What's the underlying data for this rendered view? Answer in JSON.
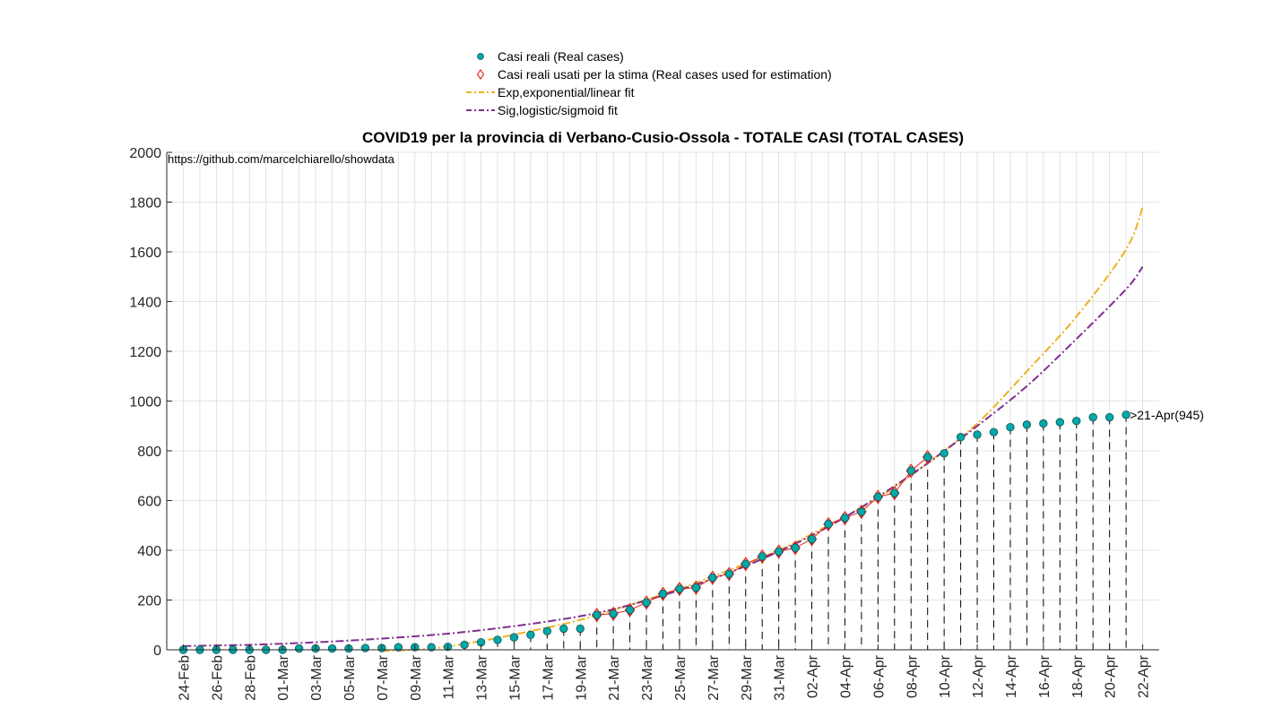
{
  "chart_data": {
    "type": "scatter",
    "title": "COVID19 per la provincia di Verbano-Cusio-Ossola - TOTALE CASI (TOTAL CASES)",
    "annotation": "https://github.com/marcelchiarello/showdata",
    "end_annotation": ">21-Apr(945)",
    "xlabel": "",
    "ylabel": "",
    "ylim": [
      0,
      2000
    ],
    "yticks": [
      0,
      200,
      400,
      600,
      800,
      1000,
      1200,
      1400,
      1600,
      1800,
      2000
    ],
    "x_start": "24-Feb",
    "x_end": "22-Apr",
    "xtick_labels": [
      "24-Feb",
      "26-Feb",
      "28-Feb",
      "01-Mar",
      "03-Mar",
      "05-Mar",
      "07-Mar",
      "09-Mar",
      "11-Mar",
      "13-Mar",
      "15-Mar",
      "17-Mar",
      "19-Mar",
      "21-Mar",
      "23-Mar",
      "25-Mar",
      "27-Mar",
      "29-Mar",
      "31-Mar",
      "02-Apr",
      "04-Apr",
      "06-Apr",
      "08-Apr",
      "10-Apr",
      "12-Apr",
      "14-Apr",
      "16-Apr",
      "18-Apr",
      "20-Apr",
      "22-Apr"
    ],
    "grid": true,
    "legend_position": "top-center",
    "legend": [
      {
        "label": "Casi reali (Real cases)",
        "marker": "circle"
      },
      {
        "label": "Casi reali usati per la stima (Real cases used for estimation)",
        "marker": "diamond"
      },
      {
        "label": "Exp,exponential/linear fit",
        "marker": "dashdot"
      },
      {
        "label": "Sig,logistic/sigmoid fit",
        "marker": "dashdot"
      }
    ],
    "colors": {
      "real": "#00a8a8",
      "estimation": "#e8241c",
      "exp": "#edb120",
      "sig": "#7e2f8e",
      "stem": "#000000"
    },
    "series": [
      {
        "name": "Casi reali (Real cases)",
        "dates": [
          "24-Feb",
          "25-Feb",
          "26-Feb",
          "27-Feb",
          "28-Feb",
          "29-Feb",
          "01-Mar",
          "02-Mar",
          "03-Mar",
          "04-Mar",
          "05-Mar",
          "06-Mar",
          "07-Mar",
          "08-Mar",
          "09-Mar",
          "10-Mar",
          "11-Mar",
          "12-Mar",
          "13-Mar",
          "14-Mar",
          "15-Mar",
          "16-Mar",
          "17-Mar",
          "18-Mar",
          "19-Mar",
          "20-Mar",
          "21-Mar",
          "22-Mar",
          "23-Mar",
          "24-Mar",
          "25-Mar",
          "26-Mar",
          "27-Mar",
          "28-Mar",
          "29-Mar",
          "30-Mar",
          "31-Mar",
          "01-Apr",
          "02-Apr",
          "03-Apr",
          "04-Apr",
          "05-Apr",
          "06-Apr",
          "07-Apr",
          "08-Apr",
          "09-Apr",
          "10-Apr",
          "11-Apr",
          "12-Apr",
          "13-Apr",
          "14-Apr",
          "15-Apr",
          "16-Apr",
          "17-Apr",
          "18-Apr",
          "19-Apr",
          "20-Apr",
          "21-Apr"
        ],
        "values": [
          0,
          0,
          0,
          0,
          0,
          0,
          0,
          5,
          5,
          5,
          5,
          7,
          7,
          10,
          10,
          10,
          12,
          20,
          30,
          40,
          50,
          60,
          75,
          85,
          85,
          140,
          145,
          160,
          190,
          225,
          245,
          250,
          290,
          305,
          345,
          375,
          395,
          410,
          445,
          505,
          530,
          555,
          615,
          630,
          720,
          775,
          790,
          855,
          865,
          875,
          895,
          905,
          910,
          915,
          920,
          935,
          935,
          945
        ]
      },
      {
        "name": "Casi reali usati per la stima (Real cases used for estimation)",
        "dates": [
          "20-Mar",
          "21-Mar",
          "22-Mar",
          "23-Mar",
          "24-Mar",
          "25-Mar",
          "26-Mar",
          "27-Mar",
          "28-Mar",
          "29-Mar",
          "30-Mar",
          "31-Mar",
          "01-Apr",
          "02-Apr",
          "03-Apr",
          "04-Apr",
          "05-Apr",
          "06-Apr",
          "07-Apr",
          "08-Apr",
          "09-Apr"
        ],
        "values": [
          140,
          145,
          160,
          190,
          225,
          245,
          250,
          290,
          305,
          345,
          375,
          395,
          410,
          445,
          505,
          530,
          555,
          615,
          630,
          720,
          775
        ]
      },
      {
        "name": "Exp,exponential/linear fit",
        "dates": [
          "07-Mar",
          "10-Mar",
          "13-Mar",
          "16-Mar",
          "19-Mar",
          "22-Mar",
          "25-Mar",
          "28-Mar",
          "31-Mar",
          "03-Apr",
          "06-Apr",
          "09-Apr",
          "12-Apr",
          "15-Apr",
          "18-Apr",
          "21-Apr",
          "22-Apr"
        ],
        "values": [
          -5,
          5,
          35,
          75,
          120,
          180,
          245,
          320,
          400,
          500,
          610,
          750,
          910,
          1120,
          1340,
          1610,
          1780
        ]
      },
      {
        "name": "Sig,logistic/sigmoid fit",
        "dates": [
          "24-Feb",
          "28-Feb",
          "03-Mar",
          "07-Mar",
          "11-Mar",
          "15-Mar",
          "19-Mar",
          "22-Mar",
          "25-Mar",
          "28-Mar",
          "31-Mar",
          "03-Apr",
          "06-Apr",
          "09-Apr",
          "12-Apr",
          "15-Apr",
          "18-Apr",
          "21-Apr",
          "22-Apr"
        ],
        "values": [
          15,
          20,
          30,
          45,
          65,
          95,
          135,
          180,
          240,
          310,
          395,
          495,
          615,
          750,
          900,
          1060,
          1250,
          1450,
          1540
        ]
      }
    ]
  }
}
